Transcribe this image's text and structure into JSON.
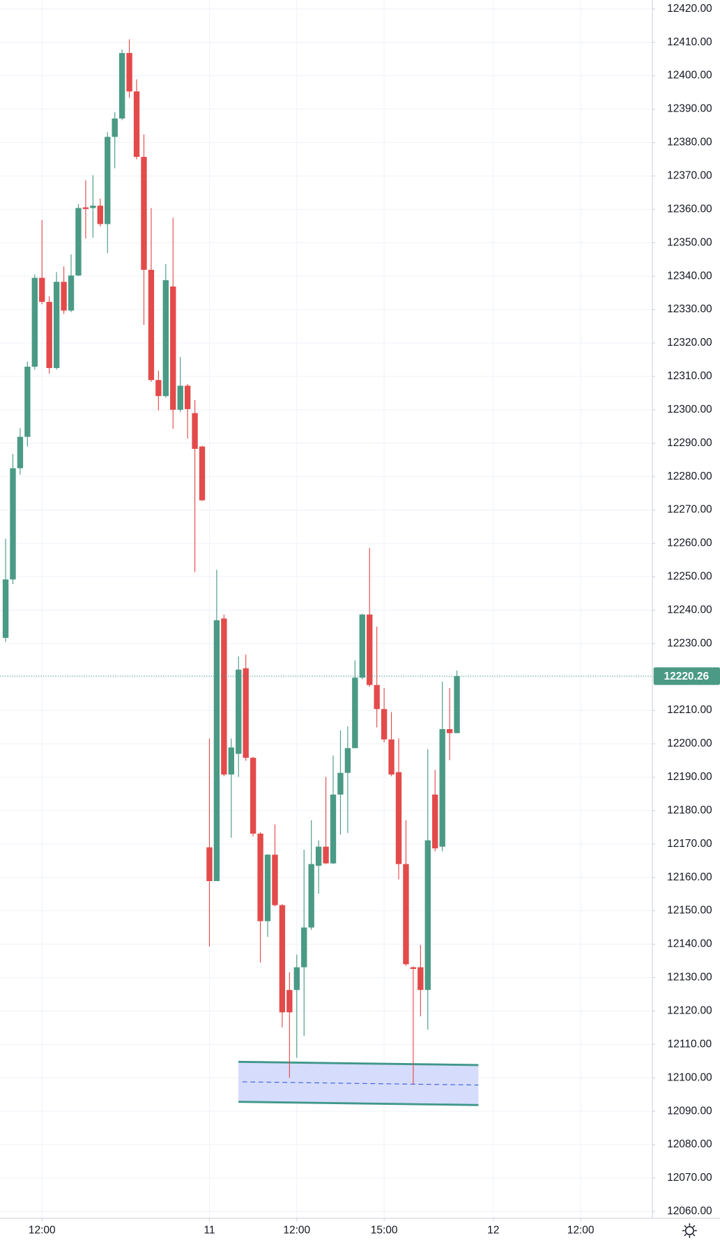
{
  "chart_data": {
    "type": "candlestick",
    "up_color": "#4a9a85",
    "down_color": "#e34a4a",
    "grid": true,
    "x": [
      0,
      1,
      2,
      3,
      4,
      5,
      6,
      7,
      8,
      9,
      10,
      11,
      12,
      13,
      14,
      15,
      16,
      17,
      18,
      19,
      20,
      21,
      22,
      23,
      24,
      25,
      26,
      27,
      28,
      29,
      30,
      31,
      32,
      33,
      34,
      35,
      36,
      37,
      38,
      39,
      40,
      41,
      42,
      43,
      44,
      45,
      46,
      47,
      48,
      49,
      50,
      51,
      52,
      53,
      54,
      55,
      56,
      57,
      58,
      59,
      60,
      61,
      62
    ],
    "open": [
      12231.7,
      12249.2,
      12282.5,
      12291.9,
      12312.9,
      12339.5,
      12332.3,
      12312.5,
      12338.3,
      12329.7,
      12340.2,
      12360.6,
      12360.4,
      12361.1,
      12355.6,
      12381.7,
      12387.2,
      12406.8,
      12395.3,
      12375.7,
      12341.9,
      12308.9,
      12304.1,
      12336.9,
      12300.0,
      12307.2,
      12299.0,
      12289.0,
      12169.0,
      12158.9,
      12237.5,
      12190.8,
      12197.0,
      12222.6,
      12195.8,
      12173.1,
      12146.9,
      12166.8,
      12151.7,
      12126.3,
      12126.3,
      12133.1,
      12145.0,
      12163.5,
      12169.2,
      12164.2,
      12184.8,
      12191.3,
      12198.7,
      12219.8,
      12238.7,
      12217.6,
      12210.4,
      12201.3,
      12191.5,
      12164.0,
      12133.1,
      12133.1,
      12126.3,
      12184.8,
      12169.2,
      12204.4,
      12203.2
    ],
    "high": [
      12261.4,
      12286.8,
      12294.5,
      12314.4,
      12340.5,
      12356.8,
      12334.0,
      12341.2,
      12342.9,
      12346.5,
      12361.6,
      12368.7,
      12370.2,
      12363.2,
      12383.1,
      12389.1,
      12407.8,
      12410.9,
      12398.9,
      12382.4,
      12360.4,
      12311.7,
      12343.6,
      12357.5,
      12315.8,
      12307.7,
      12302.9,
      12289.2,
      12201.6,
      12252.1,
      12238.7,
      12201.6,
      12226.2,
      12226.7,
      12196.1,
      12173.5,
      12167.0,
      12175.9,
      12152.0,
      12131.6,
      12136.9,
      12168.3,
      12177.1,
      12171.1,
      12190.1,
      12196.5,
      12204.0,
      12205.2,
      12225.0,
      12238.9,
      12258.6,
      12235.1,
      12216.7,
      12209.5,
      12201.6,
      12177.1,
      12133.3,
      12139.8,
      12198.4,
      12192.2,
      12218.6,
      12216.7,
      12221.9
    ],
    "low": [
      12230.5,
      12247.8,
      12280.6,
      12289.0,
      12312.0,
      12331.6,
      12310.8,
      12312.0,
      12328.7,
      12329.2,
      12340.0,
      12351.3,
      12351.5,
      12354.9,
      12346.9,
      12372.3,
      12386.7,
      12393.4,
      12375.0,
      12325.4,
      12308.4,
      12299.8,
      12303.6,
      12294.3,
      12299.3,
      12291.4,
      12251.4,
      12272.7,
      12139.3,
      12158.9,
      12190.3,
      12171.9,
      12190.1,
      12194.9,
      12172.3,
      12134.5,
      12142.2,
      12151.3,
      12115.1,
      12100.0,
      12106.0,
      12112.5,
      12144.3,
      12155.1,
      12164.0,
      12164.0,
      12172.8,
      12173.3,
      12198.7,
      12219.3,
      12217.1,
      12204.9,
      12200.4,
      12190.3,
      12159.4,
      12133.5,
      12098.1,
      12118.4,
      12114.4,
      12167.8,
      12167.8,
      12195.1,
      12203.2
    ],
    "close": [
      12249.2,
      12282.5,
      12291.9,
      12312.9,
      12339.5,
      12332.3,
      12312.5,
      12338.3,
      12329.7,
      12340.2,
      12360.4,
      12360.1,
      12361.1,
      12355.6,
      12381.7,
      12387.2,
      12406.8,
      12395.3,
      12375.7,
      12341.9,
      12308.9,
      12304.1,
      12338.8,
      12300.0,
      12307.2,
      12300.2,
      12288.3,
      12272.9,
      12158.9,
      12237.0,
      12190.8,
      12198.9,
      12222.2,
      12195.8,
      12173.1,
      12146.9,
      12166.8,
      12151.7,
      12119.6,
      12119.6,
      12133.1,
      12145.0,
      12164.0,
      12169.2,
      12164.2,
      12184.8,
      12191.3,
      12198.7,
      12219.8,
      12238.7,
      12217.6,
      12210.4,
      12201.3,
      12190.8,
      12164.0,
      12134.0,
      12132.6,
      12126.3,
      12171.1,
      12168.7,
      12204.4,
      12203.2,
      12220.26
    ],
    "last_price": 12220.26,
    "xlim": [
      -0.77,
      88.8
    ],
    "xticks": [
      {
        "value": 5,
        "label": "12:00"
      },
      {
        "value": 28,
        "label": "11"
      },
      {
        "value": 40,
        "label": "12:00"
      },
      {
        "value": 52,
        "label": "15:00"
      },
      {
        "value": 67,
        "label": "12"
      },
      {
        "value": 79,
        "label": "12:00"
      }
    ],
    "ylim": [
      12058.08,
      12422.63
    ],
    "yticks": [
      {
        "value": 12060,
        "label": "12060.00"
      },
      {
        "value": 12070,
        "label": "12070.00"
      },
      {
        "value": 12080,
        "label": "12080.00"
      },
      {
        "value": 12090,
        "label": "12090.00"
      },
      {
        "value": 12100,
        "label": "12100.00"
      },
      {
        "value": 12110,
        "label": "12110.00"
      },
      {
        "value": 12120,
        "label": "12120.00"
      },
      {
        "value": 12130,
        "label": "12130.00"
      },
      {
        "value": 12140,
        "label": "12140.00"
      },
      {
        "value": 12150,
        "label": "12150.00"
      },
      {
        "value": 12160,
        "label": "12160.00"
      },
      {
        "value": 12170,
        "label": "12170.00"
      },
      {
        "value": 12180,
        "label": "12180.00"
      },
      {
        "value": 12190,
        "label": "12190.00"
      },
      {
        "value": 12200,
        "label": "12200.00"
      },
      {
        "value": 12210,
        "label": "12210.00"
      },
      {
        "value": 12220,
        "label": "12220.00"
      },
      {
        "value": 12230,
        "label": "12230.00"
      },
      {
        "value": 12240,
        "label": "12240.00"
      },
      {
        "value": 12250,
        "label": "12250.00"
      },
      {
        "value": 12260,
        "label": "12260.00"
      },
      {
        "value": 12270,
        "label": "12270.00"
      },
      {
        "value": 12280,
        "label": "12280.00"
      },
      {
        "value": 12290,
        "label": "12290.00"
      },
      {
        "value": 12300,
        "label": "12300.00"
      },
      {
        "value": 12310,
        "label": "12310.00"
      },
      {
        "value": 12320,
        "label": "12320.00"
      },
      {
        "value": 12330,
        "label": "12330.00"
      },
      {
        "value": 12340,
        "label": "12340.00"
      },
      {
        "value": 12350,
        "label": "12350.00"
      },
      {
        "value": 12360,
        "label": "12360.00"
      },
      {
        "value": 12370,
        "label": "12370.00"
      },
      {
        "value": 12380,
        "label": "12380.00"
      },
      {
        "value": 12390,
        "label": "12390.00"
      },
      {
        "value": 12400,
        "label": "12400.00"
      },
      {
        "value": 12410,
        "label": "12410.00"
      },
      {
        "value": 12420,
        "label": "12420.00"
      }
    ]
  }
}
